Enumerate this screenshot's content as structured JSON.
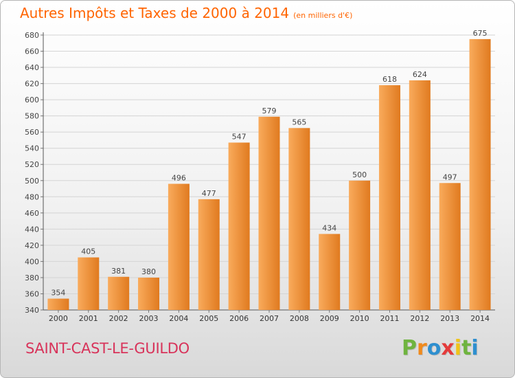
{
  "title": "Autres Impôts et Taxes de 2000 à 2014",
  "unit": "(en milliers d'€)",
  "commune": "SAINT-CAST-LE-GUILDO",
  "logo_letters": [
    "P",
    "r",
    "o",
    "x",
    "i",
    "t",
    "i"
  ],
  "colors": {
    "title": "#ff6400",
    "commune": "#d8335a",
    "bar_light": "#f9ab5c",
    "bar_dark": "#e07a1f",
    "logo": [
      "#6fb43f",
      "#f08a1c",
      "#2e8fcf",
      "#e43b3b",
      "#f0c419",
      "#6fb43f",
      "#2e8fcf"
    ]
  },
  "chart_data": {
    "type": "bar",
    "categories": [
      "2000",
      "2001",
      "2002",
      "2003",
      "2004",
      "2005",
      "2006",
      "2007",
      "2008",
      "2009",
      "2010",
      "2011",
      "2012",
      "2013",
      "2014"
    ],
    "values": [
      354,
      405,
      381,
      380,
      496,
      477,
      547,
      579,
      565,
      434,
      500,
      618,
      624,
      497,
      675
    ],
    "ylim": [
      340,
      680
    ],
    "yticks": [
      340,
      360,
      380,
      400,
      420,
      440,
      460,
      480,
      500,
      520,
      540,
      560,
      580,
      600,
      620,
      640,
      660,
      680
    ],
    "grid": true
  }
}
